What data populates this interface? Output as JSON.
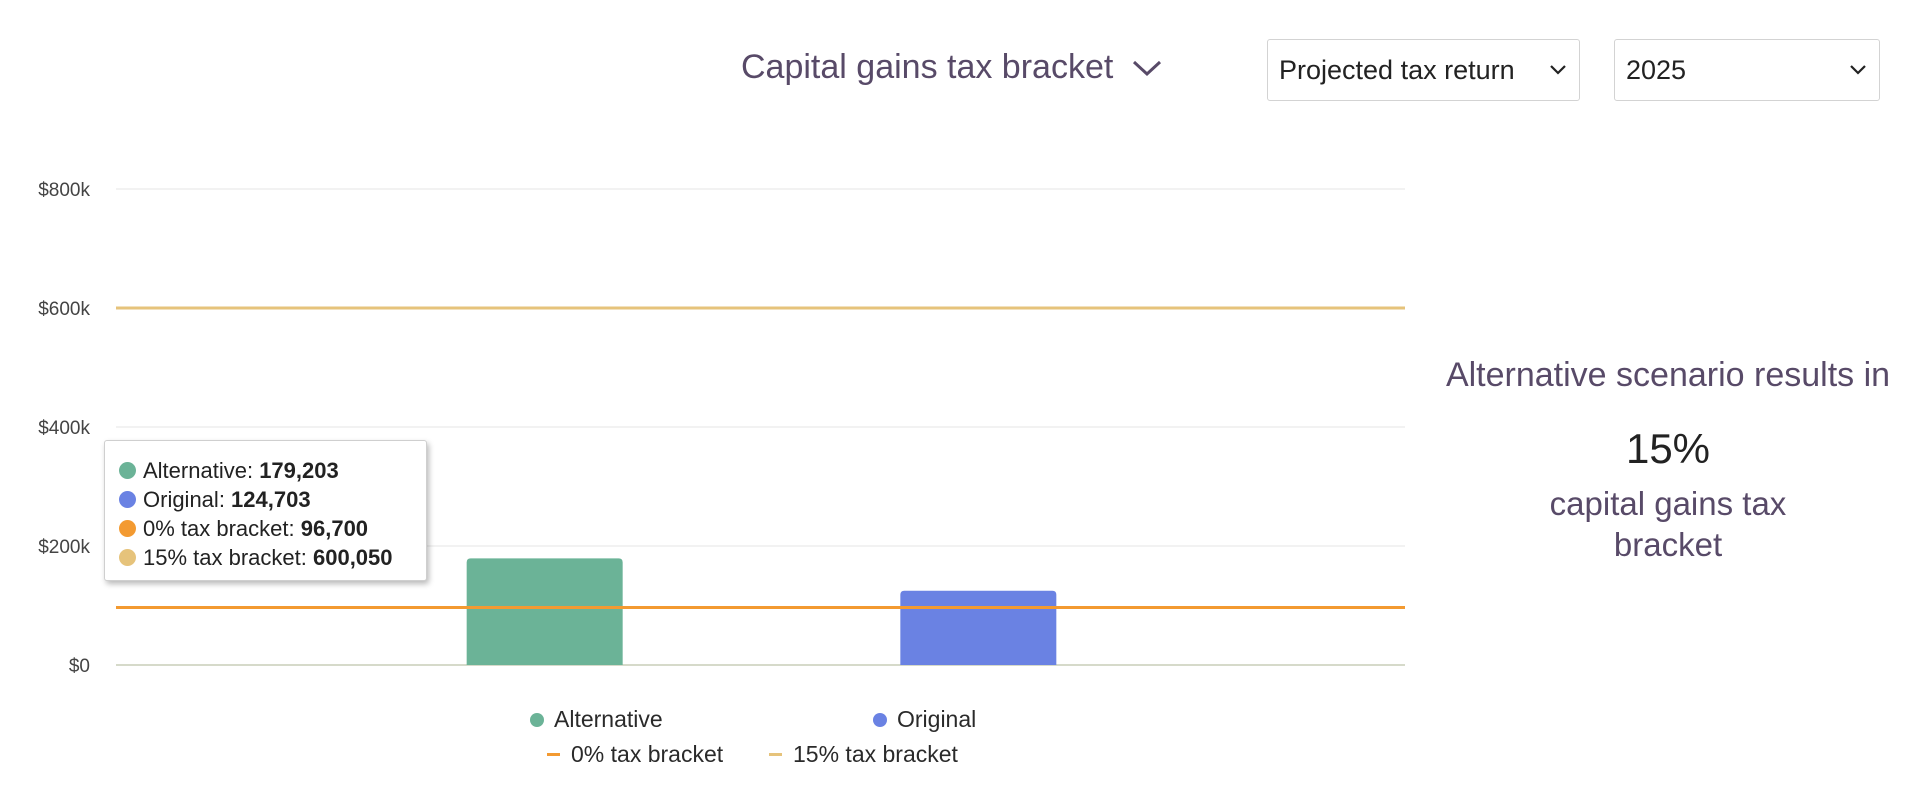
{
  "header": {
    "title": "Capital gains tax bracket",
    "return_select": {
      "value": "Projected tax return"
    },
    "year_select": {
      "value": "2025"
    }
  },
  "chart_data": {
    "type": "bar",
    "categories": [
      "Alternative",
      "Original"
    ],
    "series": [
      {
        "name": "Alternative",
        "values": [
          179203,
          null
        ],
        "color": "#6bb397"
      },
      {
        "name": "Original",
        "values": [
          null,
          124703
        ],
        "color": "#6a82e3"
      }
    ],
    "reference_lines": [
      {
        "name": "0% tax bracket",
        "value": 96700,
        "color": "#f39a31"
      },
      {
        "name": "15% tax bracket",
        "value": 600050,
        "color": "#e6c37b"
      }
    ],
    "ylim": [
      0,
      800000
    ],
    "y_ticks": [
      0,
      200000,
      400000,
      600000,
      800000
    ],
    "y_tick_labels": [
      "$0",
      "$200k",
      "$400k",
      "$600k",
      "$800k"
    ],
    "grid": true,
    "legend_placement": "bottom",
    "tooltip": {
      "rows": [
        {
          "label": "Alternative",
          "value": "179,203",
          "color": "#6bb397"
        },
        {
          "label": "Original",
          "value": "124,703",
          "color": "#6a82e3"
        },
        {
          "label": "0% tax bracket",
          "value": "96,700",
          "color": "#f39a31"
        },
        {
          "label": "15% tax bracket",
          "value": "600,050",
          "color": "#e6c37b"
        }
      ]
    }
  },
  "result": {
    "intro": "Alternative scenario results in",
    "percentage": "15%",
    "description": "capital gains tax bracket"
  }
}
